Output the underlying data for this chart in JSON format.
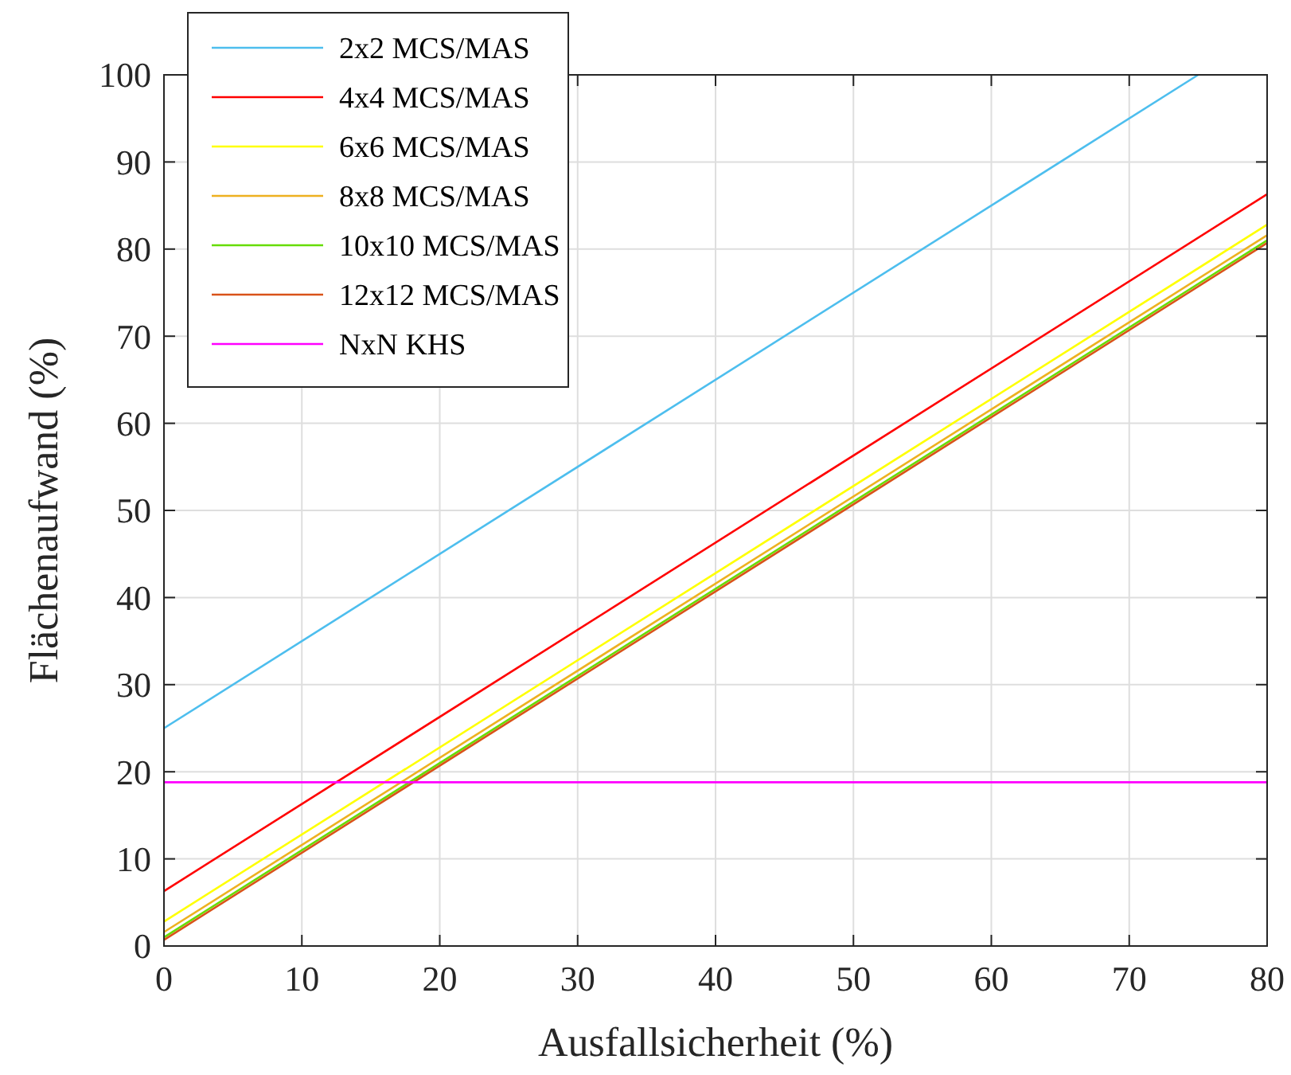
{
  "chart_data": {
    "type": "line",
    "xlabel": "Ausfallsicherheit (%)",
    "ylabel": "Flächenaufwand (%)",
    "xlim": [
      0,
      80
    ],
    "ylim": [
      0,
      100
    ],
    "xticks": [
      0,
      10,
      20,
      30,
      40,
      50,
      60,
      70,
      80
    ],
    "yticks": [
      0,
      10,
      20,
      30,
      40,
      50,
      60,
      70,
      80,
      90,
      100
    ],
    "grid": true,
    "legend": "top left",
    "marker": "none",
    "line_style": "solid",
    "series": [
      {
        "name": "2x2 MCS/MAS",
        "color": "#4dbeee",
        "x": [
          0,
          75
        ],
        "values": [
          25,
          100
        ]
      },
      {
        "name": "4x4 MCS/MAS",
        "color": "#ff0000",
        "x": [
          0,
          80
        ],
        "values": [
          6.3,
          86.3
        ]
      },
      {
        "name": "6x6 MCS/MAS",
        "color": "#ffff00",
        "x": [
          0,
          80
        ],
        "values": [
          2.8,
          82.8
        ]
      },
      {
        "name": "8x8 MCS/MAS",
        "color": "#edb120",
        "x": [
          0,
          80
        ],
        "values": [
          1.6,
          81.6
        ]
      },
      {
        "name": "10x10 MCS/MAS",
        "color": "#66dd00",
        "x": [
          0,
          80
        ],
        "values": [
          1,
          81
        ]
      },
      {
        "name": "12x12 MCS/MAS",
        "color": "#d95319",
        "x": [
          0,
          80
        ],
        "values": [
          0.7,
          80.7
        ]
      },
      {
        "name": "NxN KHS",
        "color": "#ff00ff",
        "x": [
          0,
          80
        ],
        "values": [
          18.8,
          18.8
        ]
      }
    ]
  }
}
